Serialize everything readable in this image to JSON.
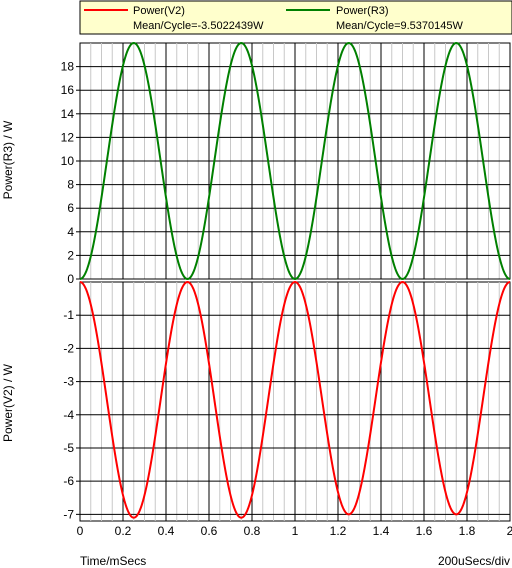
{
  "legend": {
    "background": "#ffffcc",
    "entries": [
      {
        "label": "Power(V2)",
        "stat": "Mean/Cycle=-3.5022439W",
        "color": "#ff0000"
      },
      {
        "label": "Power(R3)",
        "stat": "Mean/Cycle=9.5370145W",
        "color": "#008000"
      }
    ]
  },
  "footer": {
    "xlabel": "Time/mSecs",
    "scale": "200uSecs/div"
  },
  "chart_data": [
    {
      "type": "line",
      "ylabel": "Power(R3) / W",
      "ylim": [
        0,
        20
      ],
      "xlim": [
        0,
        2
      ],
      "grid": true,
      "yticks": [
        "0",
        "2",
        "4",
        "6",
        "8",
        "10",
        "12",
        "14",
        "16",
        "18"
      ],
      "series": [
        {
          "name": "Power(R3)",
          "color": "#008000",
          "fn": "sin2",
          "amplitude": 20,
          "period": 0.5,
          "phase": 0,
          "x": [
            0,
            0.25,
            0.5,
            0.75,
            1.0,
            1.25,
            1.5,
            1.75,
            2.0
          ],
          "y": [
            0,
            20,
            0,
            20,
            0,
            20,
            0,
            20,
            0
          ]
        }
      ]
    },
    {
      "type": "line",
      "ylabel": "Power(V2) / W",
      "ylim": [
        -7.2,
        0
      ],
      "xlim": [
        0,
        2
      ],
      "grid": true,
      "yticks": [
        "-1",
        "-2",
        "-3",
        "-4",
        "-5",
        "-6",
        "-7"
      ],
      "xticks": [
        "0",
        "0.2",
        "0.4",
        "0.6",
        "0.8",
        "1",
        "1.2",
        "1.4",
        "1.6",
        "1.8",
        "2"
      ],
      "series": [
        {
          "name": "Power(V2)",
          "color": "#ff0000",
          "fn": "negsin2",
          "amplitude": 7.1,
          "period": 0.5,
          "phase": 0,
          "x": [
            0,
            0.25,
            0.5,
            0.75,
            1.0,
            1.25,
            1.5,
            1.75,
            2.0
          ],
          "y": [
            0,
            -7.1,
            0,
            -7.0,
            0,
            -7.2,
            0,
            -7.0,
            0
          ]
        }
      ]
    }
  ]
}
